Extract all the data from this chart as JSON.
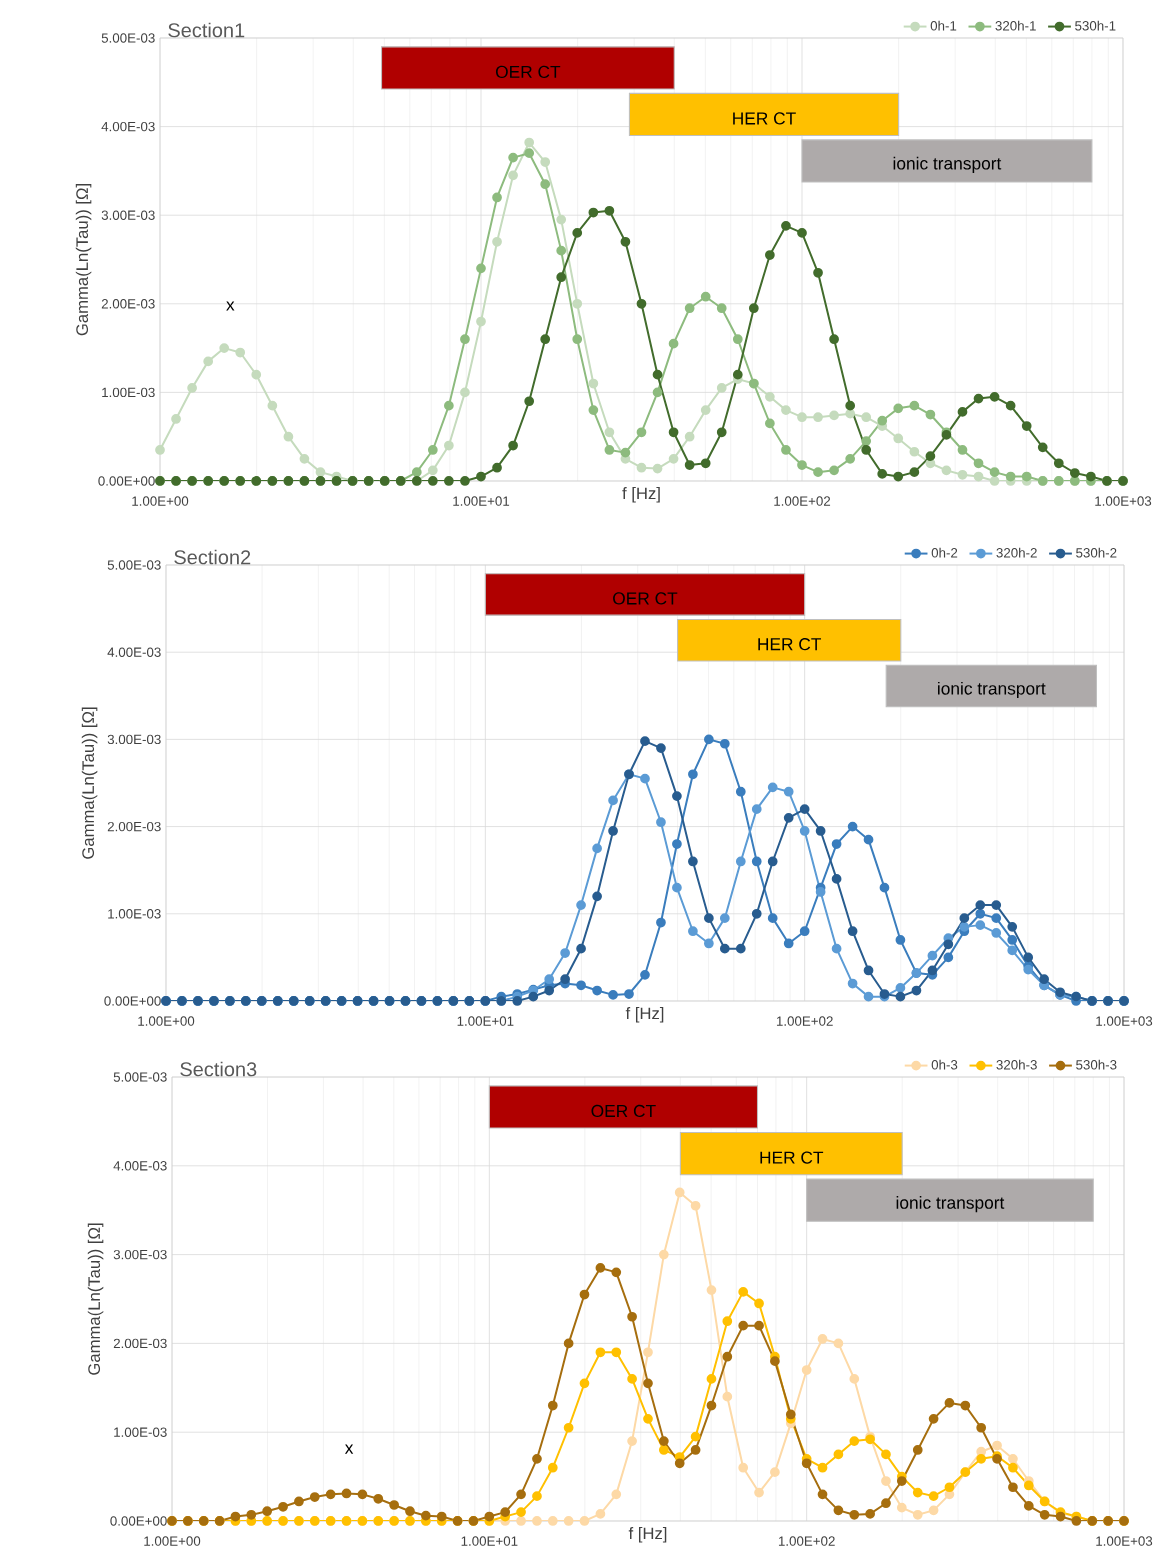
{
  "chart_data": [
    {
      "type": "line",
      "title": "Section1",
      "xlabel": "f [Hz]",
      "ylabel": "Gamma(Ln(Tau))  [Ω]",
      "log": "x",
      "grid": true,
      "legend": "top right",
      "marker": "circle",
      "line_style": "solid",
      "xlim": [
        1,
        1000
      ],
      "ylim": [
        0,
        0.005
      ],
      "xticks": [
        {
          "value": 1,
          "label": "1.00E+00"
        },
        {
          "value": 10,
          "label": "1.00E+01"
        },
        {
          "value": 100,
          "label": "1.00E+02"
        },
        {
          "value": 1000,
          "label": "1.00E+03"
        }
      ],
      "yticks": [
        {
          "value": 0,
          "label": "0.00E+00"
        },
        {
          "value": 0.001,
          "label": "1.00E-03"
        },
        {
          "value": 0.002,
          "label": "2.00E-03"
        },
        {
          "value": 0.003,
          "label": "3.00E-03"
        },
        {
          "value": 0.004,
          "label": "4.00E-03"
        },
        {
          "value": 0.005,
          "label": "5.00E-03"
        }
      ],
      "x": [
        1,
        1.122,
        1.259,
        1.413,
        1.585,
        1.778,
        1.995,
        2.239,
        2.512,
        2.818,
        3.162,
        3.548,
        3.981,
        4.467,
        5.012,
        5.623,
        6.31,
        7.079,
        7.943,
        8.913,
        10,
        11.22,
        12.59,
        14.13,
        15.85,
        17.78,
        19.95,
        22.39,
        25.12,
        28.18,
        31.62,
        35.48,
        39.81,
        44.67,
        50.12,
        56.23,
        63.1,
        70.79,
        79.43,
        89.13,
        100,
        112.2,
        125.9,
        141.3,
        158.5,
        177.8,
        199.5,
        223.9,
        251.2,
        281.8,
        316.2,
        354.8,
        398.1,
        446.7,
        501.2,
        562.3,
        631,
        707.9,
        794.3,
        891.3,
        1000
      ],
      "series": [
        {
          "name": "0h-1",
          "color": "#c5dbbd",
          "values": [
            0.00035,
            0.0007,
            0.00105,
            0.00135,
            0.0015,
            0.00145,
            0.0012,
            0.00085,
            0.0005,
            0.00025,
            0.0001,
            5e-05,
            0,
            0,
            0,
            0,
            0,
            0.00012,
            0.0004,
            0.001,
            0.0018,
            0.0027,
            0.00345,
            0.00382,
            0.0036,
            0.00295,
            0.002,
            0.0011,
            0.00055,
            0.00025,
            0.00015,
            0.00014,
            0.00025,
            0.0005,
            0.0008,
            0.00105,
            0.00115,
            0.0011,
            0.00095,
            0.0008,
            0.00072,
            0.00072,
            0.00074,
            0.00076,
            0.00072,
            0.00062,
            0.00048,
            0.00033,
            0.0002,
            0.00012,
            7e-05,
            5e-05,
            0,
            0,
            0,
            0,
            0,
            0,
            0,
            0,
            0
          ]
        },
        {
          "name": "320h-1",
          "color": "#8dbb7e",
          "values": [
            0,
            0,
            0,
            0,
            0,
            0,
            0,
            0,
            0,
            0,
            0,
            0,
            0,
            0,
            0,
            0,
            0.0001,
            0.00035,
            0.00085,
            0.0016,
            0.0024,
            0.0032,
            0.00365,
            0.0037,
            0.00335,
            0.0026,
            0.0016,
            0.0008,
            0.00035,
            0.00032,
            0.00055,
            0.001,
            0.00155,
            0.00195,
            0.00208,
            0.00195,
            0.0016,
            0.0011,
            0.00065,
            0.00035,
            0.00018,
            0.0001,
            0.00012,
            0.00025,
            0.00045,
            0.00068,
            0.00082,
            0.00085,
            0.00075,
            0.00055,
            0.00035,
            0.0002,
            0.0001,
            5e-05,
            5e-05,
            0,
            0,
            0,
            0,
            0,
            0
          ]
        },
        {
          "name": "530h-1",
          "color": "#426c2c",
          "values": [
            0,
            0,
            0,
            0,
            0,
            0,
            0,
            0,
            0,
            0,
            0,
            0,
            0,
            0,
            0,
            0,
            0,
            0,
            0,
            0,
            5e-05,
            0.00015,
            0.0004,
            0.0009,
            0.0016,
            0.0023,
            0.0028,
            0.00303,
            0.00305,
            0.0027,
            0.002,
            0.0012,
            0.00055,
            0.00018,
            0.0002,
            0.00055,
            0.0012,
            0.00195,
            0.00255,
            0.00288,
            0.0028,
            0.00235,
            0.0016,
            0.00085,
            0.00035,
            8e-05,
            5e-05,
            0.0001,
            0.00028,
            0.00052,
            0.00078,
            0.00093,
            0.00095,
            0.00085,
            0.00062,
            0.00038,
            0.0002,
            9e-05,
            5e-05,
            0,
            0
          ]
        }
      ],
      "bands": [
        {
          "axis": "x",
          "from": 4.9,
          "to": 40,
          "label": "OER CT",
          "color": "#b00000"
        },
        {
          "axis": "x",
          "from": 29,
          "to": 200,
          "label": "HER CT",
          "color": "#ffc000"
        },
        {
          "axis": "x",
          "from": 100,
          "to": 800,
          "label": "ionic transport",
          "color": "#aeaaaa"
        }
      ],
      "annotations": [
        "x"
      ]
    },
    {
      "type": "line",
      "title": "Section2",
      "xlabel": "f [Hz]",
      "ylabel": "Gamma(Ln(Tau)) [Ω]",
      "log": "x",
      "grid": true,
      "legend": "top right",
      "marker": "circle",
      "line_style": "solid",
      "xlim": [
        1,
        1000
      ],
      "ylim": [
        0,
        0.005
      ],
      "xticks": [
        {
          "value": 1,
          "label": "1.00E+00"
        },
        {
          "value": 10,
          "label": "1.00E+01"
        },
        {
          "value": 100,
          "label": "1.00E+02"
        },
        {
          "value": 1000,
          "label": "1.00E+03"
        }
      ],
      "yticks": [
        {
          "value": 0,
          "label": "0.00E+00"
        },
        {
          "value": 0.001,
          "label": "1.00E-03"
        },
        {
          "value": 0.002,
          "label": "2.00E-03"
        },
        {
          "value": 0.003,
          "label": "3.00E-03"
        },
        {
          "value": 0.004,
          "label": "4.00E-03"
        },
        {
          "value": 0.005,
          "label": "5.00E-03"
        }
      ],
      "x": [
        1,
        1.122,
        1.259,
        1.413,
        1.585,
        1.778,
        1.995,
        2.239,
        2.512,
        2.818,
        3.162,
        3.548,
        3.981,
        4.467,
        5.012,
        5.623,
        6.31,
        7.079,
        7.943,
        8.913,
        10,
        11.22,
        12.59,
        14.13,
        15.85,
        17.78,
        19.95,
        22.39,
        25.12,
        28.18,
        31.62,
        35.48,
        39.81,
        44.67,
        50.12,
        56.23,
        63.1,
        70.79,
        79.43,
        89.13,
        100,
        112.2,
        125.9,
        141.3,
        158.5,
        177.8,
        199.5,
        223.9,
        251.2,
        281.8,
        316.2,
        354.8,
        398.1,
        446.7,
        501.2,
        562.3,
        631,
        707.9,
        794.3,
        891.3,
        1000
      ],
      "series": [
        {
          "name": "0h-2",
          "color": "#3a7dbd",
          "values": [
            0,
            0,
            0,
            0,
            0,
            0,
            0,
            0,
            0,
            0,
            0,
            0,
            0,
            0,
            0,
            0,
            0,
            0,
            0,
            0,
            0,
            5e-05,
            8e-05,
            0.00013,
            0.00018,
            0.0002,
            0.00018,
            0.00012,
            7e-05,
            8e-05,
            0.0003,
            0.0009,
            0.0018,
            0.0026,
            0.003,
            0.00295,
            0.0024,
            0.0016,
            0.00095,
            0.00066,
            0.0008,
            0.0013,
            0.0018,
            0.002,
            0.00185,
            0.0013,
            0.0007,
            0.00032,
            0.0003,
            0.0005,
            0.0008,
            0.001,
            0.00095,
            0.0007,
            0.0004,
            0.00018,
            7e-05,
            0,
            0,
            0,
            0
          ]
        },
        {
          "name": "320h-2",
          "color": "#5b9bd5",
          "values": [
            0,
            0,
            0,
            0,
            0,
            0,
            0,
            0,
            0,
            0,
            0,
            0,
            0,
            0,
            0,
            0,
            0,
            0,
            0,
            0,
            0,
            0,
            5e-05,
            0.00012,
            0.00025,
            0.00055,
            0.0011,
            0.00175,
            0.0023,
            0.0026,
            0.00255,
            0.00205,
            0.0013,
            0.0008,
            0.00066,
            0.00095,
            0.0016,
            0.0022,
            0.00245,
            0.0024,
            0.00195,
            0.00125,
            0.0006,
            0.0002,
            5e-05,
            5e-05,
            0.00015,
            0.00032,
            0.00052,
            0.00072,
            0.00085,
            0.00087,
            0.00078,
            0.00058,
            0.00036,
            0.00018,
            7e-05,
            5e-05,
            0,
            0,
            0
          ]
        },
        {
          "name": "530h-2",
          "color": "#285c8f",
          "values": [
            0,
            0,
            0,
            0,
            0,
            0,
            0,
            0,
            0,
            0,
            0,
            0,
            0,
            0,
            0,
            0,
            0,
            0,
            0,
            0,
            0,
            0,
            0,
            5e-05,
            0.00012,
            0.00025,
            0.0006,
            0.0012,
            0.00195,
            0.0026,
            0.00298,
            0.0029,
            0.00235,
            0.0016,
            0.00095,
            0.0006,
            0.0006,
            0.001,
            0.0016,
            0.0021,
            0.0022,
            0.00195,
            0.0014,
            0.0008,
            0.00035,
            8e-05,
            5e-05,
            0.00012,
            0.00035,
            0.00065,
            0.00095,
            0.0011,
            0.0011,
            0.00085,
            0.0005,
            0.00025,
            0.0001,
            5e-05,
            0,
            0,
            0
          ]
        }
      ],
      "bands": [
        {
          "axis": "x",
          "from": 10,
          "to": 100,
          "label": "OER CT",
          "color": "#b00000"
        },
        {
          "axis": "x",
          "from": 40,
          "to": 200,
          "label": "HER CT",
          "color": "#ffc000"
        },
        {
          "axis": "x",
          "from": 180,
          "to": 820,
          "label": "ionic transport",
          "color": "#aeaaaa"
        }
      ]
    },
    {
      "type": "line",
      "title": "Section3",
      "xlabel": "f [Hz]",
      "ylabel": "Gamma(Ln(Tau))  [Ω]",
      "log": "x",
      "grid": true,
      "legend": "top right",
      "marker": "circle",
      "line_style": "solid",
      "xlim": [
        1,
        1000
      ],
      "ylim": [
        0,
        0.005
      ],
      "xticks": [
        {
          "value": 1,
          "label": "1.00E+00"
        },
        {
          "value": 10,
          "label": "1.00E+01"
        },
        {
          "value": 100,
          "label": "1.00E+02"
        },
        {
          "value": 1000,
          "label": "1.00E+03"
        }
      ],
      "yticks": [
        {
          "value": 0,
          "label": "0.00E+00"
        },
        {
          "value": 0.001,
          "label": "1.00E-03"
        },
        {
          "value": 0.002,
          "label": "2.00E-03"
        },
        {
          "value": 0.003,
          "label": "3.00E-03"
        },
        {
          "value": 0.004,
          "label": "4.00E-03"
        },
        {
          "value": 0.005,
          "label": "5.00E-03"
        }
      ],
      "x": [
        1,
        1.122,
        1.259,
        1.413,
        1.585,
        1.778,
        1.995,
        2.239,
        2.512,
        2.818,
        3.162,
        3.548,
        3.981,
        4.467,
        5.012,
        5.623,
        6.31,
        7.079,
        7.943,
        8.913,
        10,
        11.22,
        12.59,
        14.13,
        15.85,
        17.78,
        19.95,
        22.39,
        25.12,
        28.18,
        31.62,
        35.48,
        39.81,
        44.67,
        50.12,
        56.23,
        63.1,
        70.79,
        79.43,
        89.13,
        100,
        112.2,
        125.9,
        141.3,
        158.5,
        177.8,
        199.5,
        223.9,
        251.2,
        281.8,
        316.2,
        354.8,
        398.1,
        446.7,
        501.2,
        562.3,
        631,
        707.9,
        794.3,
        891.3,
        1000
      ],
      "series": [
        {
          "name": "0h-3",
          "color": "#fdd9a6",
          "values": [
            0,
            0,
            0,
            0,
            0,
            0,
            0,
            0,
            0,
            0,
            0,
            0,
            0,
            0,
            0,
            0,
            0,
            0,
            0,
            0,
            0,
            0,
            0,
            0,
            0,
            0,
            0,
            8e-05,
            0.0003,
            0.0009,
            0.0019,
            0.003,
            0.0037,
            0.00355,
            0.0026,
            0.0014,
            0.0006,
            0.00032,
            0.00055,
            0.0011,
            0.0017,
            0.00205,
            0.002,
            0.0016,
            0.00095,
            0.00045,
            0.00015,
            7e-05,
            0.00012,
            0.0003,
            0.00055,
            0.00078,
            0.00085,
            0.0007,
            0.00045,
            0.00022,
            9e-05,
            5e-05,
            0,
            0,
            0
          ]
        },
        {
          "name": "320h-3",
          "color": "#ffc000",
          "values": [
            0,
            0,
            0,
            0,
            0,
            0,
            0,
            0,
            0,
            0,
            0,
            0,
            0,
            0,
            0,
            0,
            0,
            0,
            0,
            0,
            0,
            5e-05,
            0.0001,
            0.00028,
            0.0006,
            0.00105,
            0.00155,
            0.0019,
            0.0019,
            0.0016,
            0.00115,
            0.0008,
            0.00072,
            0.00095,
            0.0016,
            0.00225,
            0.00258,
            0.00245,
            0.00185,
            0.00115,
            0.0007,
            0.0006,
            0.00075,
            0.0009,
            0.00092,
            0.00075,
            0.0005,
            0.00032,
            0.00028,
            0.00038,
            0.00055,
            0.0007,
            0.00073,
            0.0006,
            0.0004,
            0.00022,
            0.0001,
            5e-05,
            0,
            0,
            0
          ]
        },
        {
          "name": "530h-3",
          "color": "#a66e0e",
          "values": [
            0,
            0,
            0,
            0,
            5e-05,
            7e-05,
            0.00011,
            0.00016,
            0.00022,
            0.00027,
            0.0003,
            0.00031,
            0.0003,
            0.00025,
            0.00018,
            0.00011,
            6e-05,
            5e-05,
            0,
            0,
            5e-05,
            0.0001,
            0.0003,
            0.0007,
            0.0013,
            0.002,
            0.00255,
            0.00285,
            0.0028,
            0.0023,
            0.00155,
            0.0009,
            0.00065,
            0.0008,
            0.0013,
            0.00185,
            0.0022,
            0.0022,
            0.0018,
            0.0012,
            0.00065,
            0.0003,
            0.00012,
            7e-05,
            8e-05,
            0.0002,
            0.00045,
            0.0008,
            0.00115,
            0.00133,
            0.0013,
            0.00105,
            0.0007,
            0.00038,
            0.00017,
            7e-05,
            5e-05,
            0,
            0,
            0,
            0
          ]
        }
      ],
      "bands": [
        {
          "axis": "x",
          "from": 10,
          "to": 70,
          "label": "OER CT",
          "color": "#b00000"
        },
        {
          "axis": "x",
          "from": 40,
          "to": 200,
          "label": "HER CT",
          "color": "#ffc000"
        },
        {
          "axis": "x",
          "from": 100,
          "to": 800,
          "label": "ionic transport",
          "color": "#aeaaaa"
        }
      ],
      "annotations": [
        "x"
      ]
    }
  ]
}
